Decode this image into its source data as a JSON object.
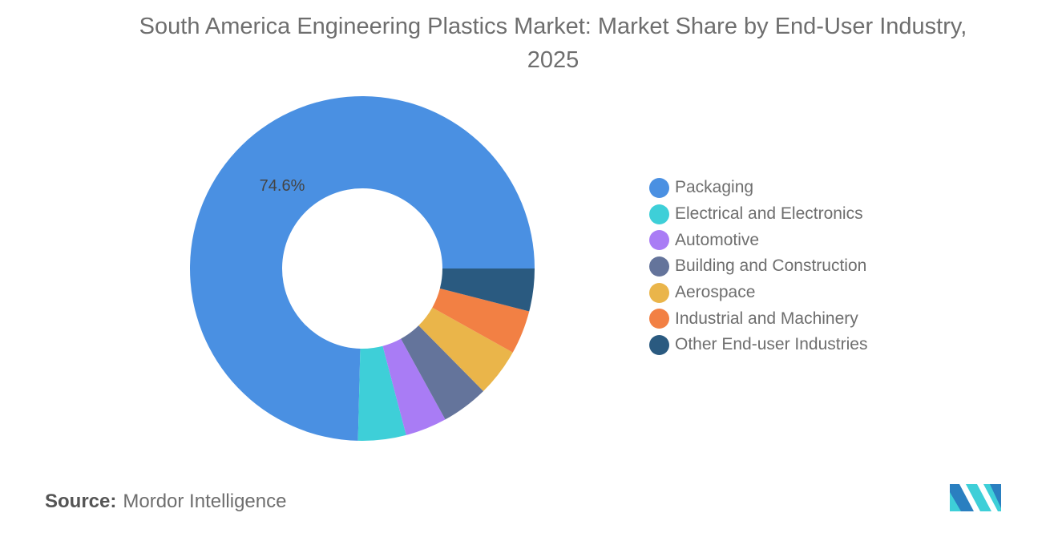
{
  "chart_data": {
    "type": "pie",
    "variant": "donut",
    "title": "South America Engineering Plastics Market: Market Share by End-User Industry, 2025",
    "unit": "%",
    "categories": [
      "Packaging",
      "Electrical and Electronics",
      "Automotive",
      "Building and Construction",
      "Aerospace",
      "Industrial and Machinery",
      "Other End-user Industries"
    ],
    "values": [
      74.6,
      4.5,
      3.9,
      4.4,
      4.5,
      4.1,
      4.0
    ],
    "colors": [
      "#4a90e2",
      "#3ecfd8",
      "#a97cf5",
      "#64749b",
      "#eab54a",
      "#f28044",
      "#2a5a80"
    ],
    "data_labels": [
      {
        "category": "Packaging",
        "text": "74.6%"
      }
    ],
    "legend_position": "right"
  },
  "footer": {
    "source_label": "Source:",
    "source_value": "Mordor Intelligence"
  },
  "logo": {
    "name": "mordor-intelligence-logo",
    "colors": [
      "#2a7fc0",
      "#3ecfd8"
    ]
  }
}
